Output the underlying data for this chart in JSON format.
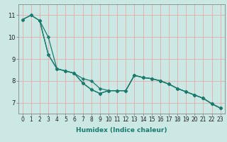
{
  "xlabel": "Humidex (Indice chaleur)",
  "bg_color": "#cce8e4",
  "line_color": "#1a7a6e",
  "grid_color": "#e8a0a0",
  "ylim": [
    6.5,
    11.5
  ],
  "xlim": [
    -0.5,
    23.5
  ],
  "yticks": [
    7,
    8,
    9,
    10,
    11
  ],
  "xticks": [
    0,
    1,
    2,
    3,
    4,
    5,
    6,
    7,
    8,
    9,
    10,
    11,
    12,
    13,
    14,
    15,
    16,
    17,
    18,
    19,
    20,
    21,
    22,
    23
  ],
  "series1_x": [
    0,
    1,
    2,
    3,
    4,
    5,
    6,
    7,
    8,
    9,
    10,
    11,
    12,
    13,
    14,
    15,
    16,
    17,
    18,
    19,
    20,
    21,
    22,
    23
  ],
  "series1_y": [
    10.8,
    11.0,
    10.75,
    10.0,
    8.55,
    8.45,
    8.35,
    8.1,
    8.0,
    7.65,
    7.55,
    7.55,
    7.55,
    8.25,
    8.15,
    8.1,
    8.0,
    7.85,
    7.65,
    7.5,
    7.35,
    7.2,
    6.95,
    6.75
  ],
  "series2_x": [
    0,
    1,
    2,
    3,
    4,
    5,
    6,
    7,
    8,
    9,
    10,
    11,
    12,
    13,
    14,
    15,
    16,
    17,
    18,
    19,
    20,
    21,
    22,
    23
  ],
  "series2_y": [
    10.8,
    11.0,
    10.75,
    9.2,
    8.55,
    8.45,
    8.35,
    7.9,
    7.6,
    7.42,
    7.55,
    7.55,
    7.55,
    8.25,
    8.15,
    8.1,
    8.0,
    7.85,
    7.65,
    7.5,
    7.35,
    7.2,
    6.95,
    6.75
  ],
  "series3_x": [
    2,
    3,
    4,
    5,
    6,
    7,
    8,
    9,
    10,
    11,
    12,
    13,
    14,
    15,
    16,
    17,
    18,
    19,
    20,
    21,
    22,
    23
  ],
  "series3_y": [
    10.75,
    9.2,
    8.55,
    8.45,
    8.35,
    7.9,
    7.6,
    7.42,
    7.55,
    7.55,
    7.55,
    8.25,
    8.15,
    8.1,
    8.0,
    7.85,
    7.65,
    7.5,
    7.35,
    7.2,
    6.95,
    6.75
  ],
  "marker_size": 2.5,
  "line_width": 0.9,
  "tick_fontsize": 5.5,
  "xlabel_fontsize": 6.5
}
